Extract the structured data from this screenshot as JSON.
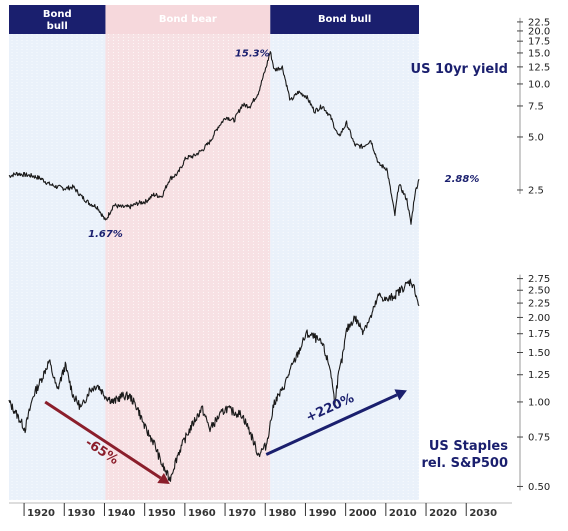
{
  "chart_data": {
    "type": "line",
    "x_ticks": [
      "1920",
      "1930",
      "1940",
      "1950",
      "1960",
      "1970",
      "1980",
      "1990",
      "2000",
      "2010",
      "2020",
      "2030"
    ],
    "regimes": [
      {
        "label": "Bond bull",
        "label_lines": [
          "Bond",
          "bull"
        ],
        "start": 1916,
        "end": 1940,
        "band_color": "#eaf1fa",
        "header_color": "#1a1f6e"
      },
      {
        "label": "Bond bear",
        "label_lines": [
          "Bond bear"
        ],
        "start": 1940,
        "end": 1981,
        "band_color": "#f7e1e4",
        "header_color": "#f6d8dc"
      },
      {
        "label": "Bond bull",
        "label_lines": [
          "Bond bull"
        ],
        "start": 1981,
        "end": 2018,
        "band_color": "#eaf1fa",
        "header_color": "#1a1f6e"
      }
    ],
    "panels": [
      {
        "name": "US 10yr yield",
        "scale": "log",
        "ylim": [
          1.3,
          24
        ],
        "y_ticks": [
          "22.5",
          "20.0",
          "17.5",
          "15.0",
          "12.5",
          "10.0",
          "7.5",
          "5.0",
          "2.5"
        ],
        "y_tick_values": [
          22.5,
          20,
          17.5,
          15,
          12.5,
          10,
          7.5,
          5,
          2.5
        ],
        "color": "#1a1a1a",
        "points": [
          [
            1916,
            3.0
          ],
          [
            1918,
            3.1
          ],
          [
            1920,
            3.05
          ],
          [
            1922,
            3.0
          ],
          [
            1924,
            2.9
          ],
          [
            1926,
            2.7
          ],
          [
            1928,
            2.6
          ],
          [
            1930,
            2.55
          ],
          [
            1932,
            2.6
          ],
          [
            1934,
            2.3
          ],
          [
            1936,
            2.1
          ],
          [
            1938,
            2.0
          ],
          [
            1940,
            1.67
          ],
          [
            1942,
            2.05
          ],
          [
            1944,
            2.0
          ],
          [
            1946,
            2.0
          ],
          [
            1948,
            2.1
          ],
          [
            1950,
            2.15
          ],
          [
            1952,
            2.35
          ],
          [
            1954,
            2.3
          ],
          [
            1956,
            2.9
          ],
          [
            1958,
            3.1
          ],
          [
            1960,
            3.8
          ],
          [
            1962,
            3.9
          ],
          [
            1964,
            4.2
          ],
          [
            1966,
            4.7
          ],
          [
            1968,
            5.7
          ],
          [
            1970,
            6.5
          ],
          [
            1972,
            6.2
          ],
          [
            1974,
            7.6
          ],
          [
            1976,
            7.5
          ],
          [
            1978,
            8.9
          ],
          [
            1980,
            12.5
          ],
          [
            1981,
            15.3
          ],
          [
            1982,
            12.0
          ],
          [
            1984,
            12.5
          ],
          [
            1986,
            8.0
          ],
          [
            1988,
            9.0
          ],
          [
            1990,
            8.5
          ],
          [
            1992,
            7.0
          ],
          [
            1994,
            7.5
          ],
          [
            1996,
            6.5
          ],
          [
            1998,
            5.0
          ],
          [
            2000,
            6.0
          ],
          [
            2002,
            4.5
          ],
          [
            2004,
            4.4
          ],
          [
            2006,
            4.8
          ],
          [
            2008,
            3.5
          ],
          [
            2010,
            3.3
          ],
          [
            2012,
            1.8
          ],
          [
            2013,
            2.7
          ],
          [
            2015,
            2.2
          ],
          [
            2016,
            1.6
          ],
          [
            2017,
            2.4
          ],
          [
            2018,
            2.88
          ]
        ],
        "annotations": [
          {
            "text": "15.3%",
            "x": 1981,
            "y": 15.3
          },
          {
            "text": "1.67%",
            "x": 1940,
            "y": 1.67
          },
          {
            "text": "2.88%",
            "x": 2018,
            "y": 2.88
          }
        ]
      },
      {
        "name": "US Staples rel. S&P500",
        "name_lines": [
          "US Staples",
          "rel. S&P500"
        ],
        "scale": "log",
        "ylim": [
          0.47,
          3.0
        ],
        "y_ticks": [
          "2.75",
          "2.50",
          "2.25",
          "2.00",
          "1.75",
          "1.50",
          "1.25",
          "1.00",
          "0.75",
          "0.50"
        ],
        "y_tick_values": [
          2.75,
          2.5,
          2.25,
          2.0,
          1.75,
          1.5,
          1.25,
          1.0,
          0.75,
          0.5
        ],
        "color": "#1a1a1a",
        "points": [
          [
            1916,
            1.0
          ],
          [
            1918,
            0.9
          ],
          [
            1920,
            0.8
          ],
          [
            1922,
            1.05
          ],
          [
            1924,
            1.2
          ],
          [
            1926,
            1.4
          ],
          [
            1928,
            1.1
          ],
          [
            1930,
            1.35
          ],
          [
            1932,
            1.05
          ],
          [
            1934,
            0.95
          ],
          [
            1936,
            1.1
          ],
          [
            1938,
            1.15
          ],
          [
            1940,
            1.05
          ],
          [
            1942,
            1.0
          ],
          [
            1944,
            1.05
          ],
          [
            1946,
            1.05
          ],
          [
            1948,
            0.95
          ],
          [
            1950,
            0.8
          ],
          [
            1952,
            0.72
          ],
          [
            1954,
            0.6
          ],
          [
            1956,
            0.53
          ],
          [
            1958,
            0.65
          ],
          [
            1960,
            0.75
          ],
          [
            1962,
            0.85
          ],
          [
            1964,
            0.95
          ],
          [
            1966,
            0.8
          ],
          [
            1968,
            0.88
          ],
          [
            1970,
            0.95
          ],
          [
            1972,
            0.92
          ],
          [
            1974,
            0.9
          ],
          [
            1976,
            0.78
          ],
          [
            1978,
            0.65
          ],
          [
            1980,
            0.7
          ],
          [
            1982,
            1.0
          ],
          [
            1984,
            1.1
          ],
          [
            1986,
            1.3
          ],
          [
            1988,
            1.5
          ],
          [
            1990,
            1.75
          ],
          [
            1992,
            1.7
          ],
          [
            1994,
            1.6
          ],
          [
            1996,
            1.3
          ],
          [
            1997,
            1.0
          ],
          [
            1998,
            1.25
          ],
          [
            1999,
            1.45
          ],
          [
            2000,
            1.8
          ],
          [
            2002,
            2.0
          ],
          [
            2004,
            1.8
          ],
          [
            2006,
            2.0
          ],
          [
            2008,
            2.4
          ],
          [
            2010,
            2.3
          ],
          [
            2012,
            2.4
          ],
          [
            2014,
            2.55
          ],
          [
            2016,
            2.7
          ],
          [
            2017,
            2.5
          ],
          [
            2018,
            2.2
          ]
        ],
        "arrows": [
          {
            "text": "-65%",
            "from": [
              1925,
              1.0
            ],
            "to": [
              1956,
              0.51
            ],
            "color": "#8b1e2b"
          },
          {
            "text": "+220%",
            "from": [
              1980,
              0.65
            ],
            "to": [
              2015,
              1.1
            ],
            "color": "#1a1f6e"
          }
        ]
      }
    ]
  }
}
